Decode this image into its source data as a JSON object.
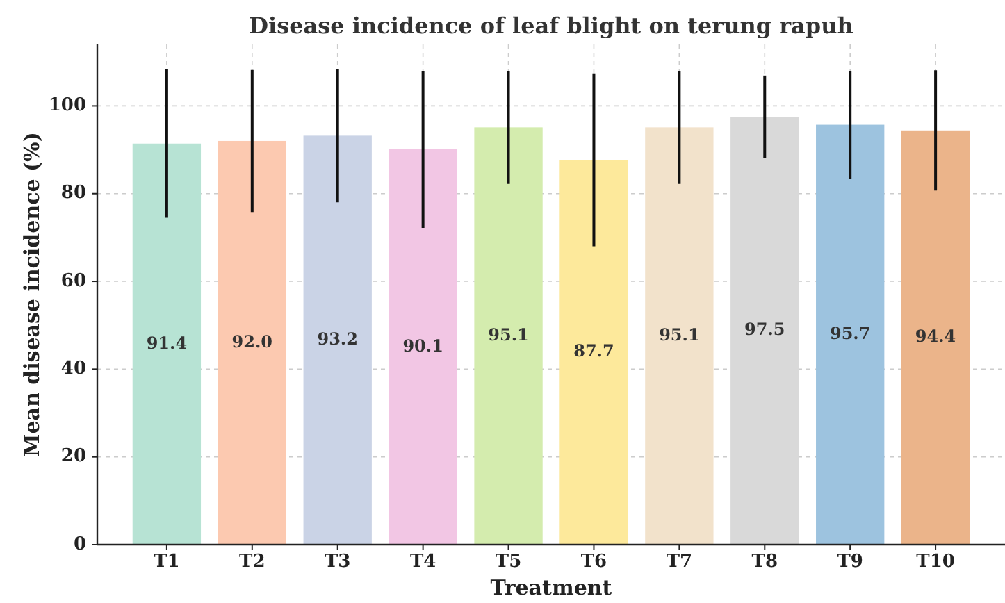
{
  "chart_data": {
    "type": "bar",
    "title": "Disease incidence of leaf blight on terung rapuh",
    "xlabel": "Treatment",
    "ylabel": "Mean disease incidence (%)",
    "categories": [
      "T1",
      "T2",
      "T3",
      "T4",
      "T5",
      "T6",
      "T7",
      "T8",
      "T9",
      "T10"
    ],
    "values": [
      91.4,
      92.0,
      93.2,
      90.1,
      95.1,
      87.7,
      95.1,
      97.5,
      95.7,
      94.4
    ],
    "errors": [
      16.9,
      16.2,
      15.2,
      17.9,
      12.9,
      19.7,
      12.9,
      9.4,
      12.3,
      13.7
    ],
    "colors": [
      "#b7e3d4",
      "#fcc9b0",
      "#cad3e6",
      "#f2c6e4",
      "#d4ecae",
      "#fde99b",
      "#f2e2cb",
      "#d9d9d9",
      "#9dc3df",
      "#ebb48a"
    ],
    "value_labels": [
      "91.4",
      "92.0",
      "93.2",
      "90.1",
      "95.1",
      "87.7",
      "95.1",
      "97.5",
      "95.7",
      "94.4"
    ],
    "ylim": [
      0,
      114
    ],
    "yticks": [
      0,
      20,
      40,
      60,
      80,
      100
    ],
    "grid": true
  }
}
